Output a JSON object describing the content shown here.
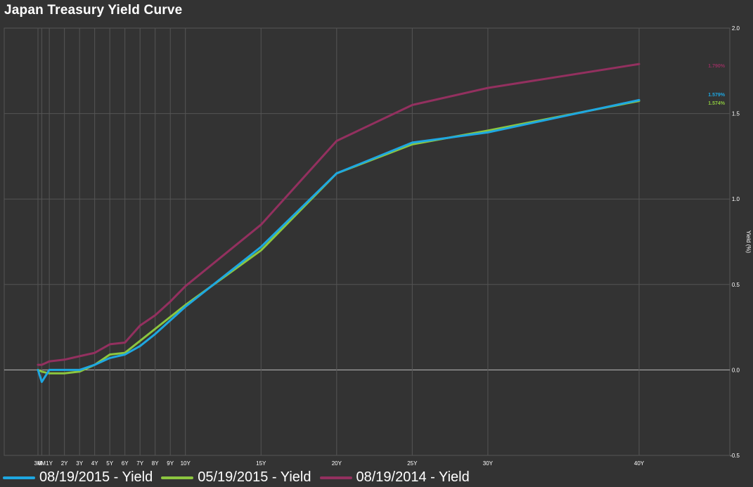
{
  "colors": {
    "background": "#333333",
    "grid": "#555555",
    "zero_line": "#bbbbbb",
    "text": "#ffffff"
  },
  "chart_data": {
    "type": "line",
    "title": "Japan Treasury Yield Curve",
    "xlabel": "",
    "ylabel": "Yield (%)",
    "ylim": [
      -0.5,
      2.0
    ],
    "y_ticks": [
      "2.0",
      "1.5",
      "1.0",
      "0.5",
      "0.0",
      "-0.5"
    ],
    "x_ticks": [
      "3M",
      "6M",
      "1Y",
      "2Y",
      "3Y",
      "4Y",
      "5Y",
      "6Y",
      "7Y",
      "8Y",
      "9Y",
      "10Y",
      "15Y",
      "20Y",
      "25Y",
      "30Y",
      "40Y"
    ],
    "x_years": [
      0.25,
      0.5,
      1,
      2,
      3,
      4,
      5,
      6,
      7,
      8,
      9,
      10,
      15,
      20,
      25,
      30,
      40
    ],
    "grid": true,
    "legend_position": "bottom",
    "series": [
      {
        "name": "08/19/2015 - Yield",
        "color": "#1ea7e1",
        "values": [
          0.0,
          -0.07,
          0.0,
          0.0,
          0.0,
          0.03,
          0.07,
          0.09,
          0.14,
          0.21,
          0.29,
          0.37,
          0.72,
          1.15,
          1.33,
          1.39,
          1.579
        ],
        "end_label": "1.579%"
      },
      {
        "name": "05/19/2015 - Yield",
        "color": "#8cc63f",
        "values": [
          0.0,
          -0.01,
          -0.02,
          -0.02,
          -0.01,
          0.03,
          0.09,
          0.1,
          0.17,
          0.24,
          0.31,
          0.38,
          0.7,
          1.15,
          1.32,
          1.4,
          1.574
        ],
        "end_label": "1.574%"
      },
      {
        "name": "08/19/2014 - Yield",
        "color": "#93305f",
        "values": [
          0.03,
          0.03,
          0.05,
          0.06,
          0.08,
          0.1,
          0.15,
          0.16,
          0.26,
          0.32,
          0.4,
          0.49,
          0.85,
          1.34,
          1.55,
          1.65,
          1.79
        ],
        "end_label": "1.790%"
      }
    ]
  }
}
